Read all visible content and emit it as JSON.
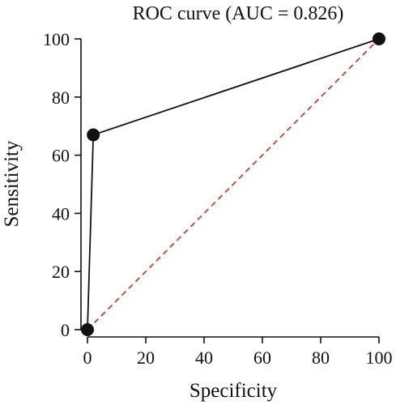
{
  "chart_data": {
    "type": "line",
    "title": "ROC curve (AUC = 0.826)",
    "xlabel": "Specificity",
    "ylabel": "Sensitivity",
    "xlim": [
      0,
      100
    ],
    "ylim": [
      0,
      100
    ],
    "xticks": [
      0,
      20,
      40,
      60,
      80,
      100
    ],
    "yticks": [
      0,
      20,
      40,
      60,
      80,
      100
    ],
    "grid": false,
    "series": [
      {
        "style": "solid-with-markers",
        "color": "#111111",
        "points": [
          [
            0,
            0
          ],
          [
            2,
            67
          ],
          [
            100,
            100
          ]
        ]
      },
      {
        "style": "dashed",
        "color": "#d33a2c",
        "points": [
          [
            0,
            0
          ],
          [
            100,
            100
          ]
        ]
      }
    ]
  }
}
